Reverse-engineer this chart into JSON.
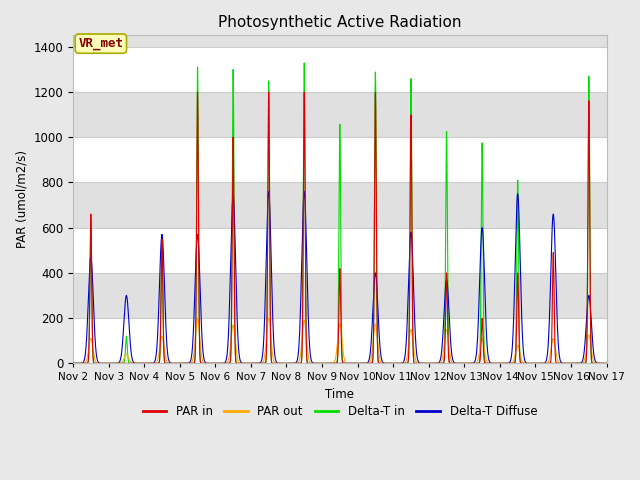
{
  "title": "Photosynthetic Active Radiation",
  "ylabel": "PAR (umol/m2/s)",
  "xlabel": "Time",
  "ylim": [
    0,
    1450
  ],
  "yticks": [
    0,
    200,
    400,
    600,
    800,
    1000,
    1200,
    1400
  ],
  "xtick_labels": [
    "Nov 2",
    "Nov 3",
    "Nov 4",
    "Nov 5",
    "Nov 6",
    "Nov 7",
    "Nov 8",
    "Nov 9",
    "Nov 10",
    "Nov 11",
    "Nov 12",
    "Nov 13",
    "Nov 14",
    "Nov 15",
    "Nov 16",
    "Nov 17"
  ],
  "color_par_in": "#dd0000",
  "color_par_out": "#ffaa00",
  "color_delta_t_in": "#00dd00",
  "color_delta_t_diffuse": "#0000cc",
  "fig_bg_color": "#e8e8e8",
  "plot_bg_color": "#ffffff",
  "band_color": "#e0e0e0",
  "legend_label": "VR_met",
  "legend_box_bg": "#ffffbb",
  "legend_box_edge": "#aaaa00",
  "legend_text_color": "#880000",
  "days": 15,
  "day_peaks_par_in": [
    660,
    0,
    550,
    1200,
    1000,
    1200,
    1200,
    420,
    1200,
    1100,
    400,
    200,
    400,
    490,
    1160
  ],
  "day_peaks_par_out": [
    110,
    40,
    120,
    200,
    170,
    200,
    190,
    175,
    175,
    150,
    150,
    110,
    80,
    110,
    125
  ],
  "day_peaks_delta_t_in": [
    620,
    120,
    570,
    1310,
    1300,
    1250,
    1330,
    1060,
    1290,
    1260,
    1025,
    975,
    810,
    0,
    1270
  ],
  "day_peaks_delta_t_diffuse": [
    470,
    300,
    570,
    570,
    740,
    760,
    760,
    0,
    400,
    580,
    370,
    600,
    750,
    660,
    300
  ]
}
